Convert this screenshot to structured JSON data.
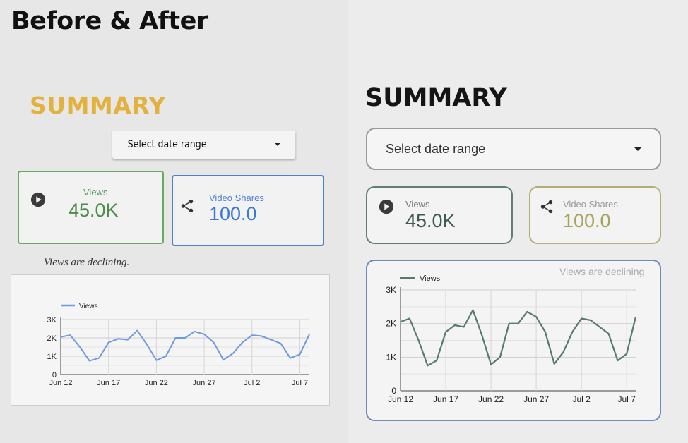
{
  "page": {
    "title": "Before & After"
  },
  "before": {
    "summary_title": "SUMMARY",
    "date_select": {
      "label": "Select date range"
    },
    "views": {
      "label": "Views",
      "value": "45.0K",
      "icon": "play-circle-icon"
    },
    "shares": {
      "label": "Video Shares",
      "value": "100.0",
      "icon": "share-icon"
    },
    "note": "Views are declining.",
    "colors": {
      "summary": "#e3b13d",
      "views": "#62ae5b",
      "shares": "#4a82d6",
      "line": "#6b9be0"
    }
  },
  "after": {
    "summary_title": "SUMMARY",
    "date_select": {
      "label": "Select date range"
    },
    "views": {
      "label": "Views",
      "value": "45.0K",
      "icon": "play-circle-icon"
    },
    "shares": {
      "label": "Video Shares",
      "value": "100.0",
      "icon": "share-icon"
    },
    "note": "Views are declining",
    "colors": {
      "views": "#5f7e76",
      "shares": "#b3ad74",
      "chart_border": "#6d8bbd",
      "line": "#557a70"
    }
  },
  "chart_data": {
    "type": "line",
    "series": [
      {
        "name": "Views",
        "values": [
          2050,
          2150,
          1500,
          750,
          900,
          1750,
          1950,
          1900,
          2400,
          1650,
          780,
          1000,
          2000,
          2000,
          2350,
          2200,
          1750,
          800,
          1150,
          1750,
          2150,
          2100,
          1900,
          1700,
          900,
          1100,
          2200
        ]
      }
    ],
    "x_tick_labels": [
      "Jun 12",
      "Jun 17",
      "Jun 22",
      "Jun 27",
      "Jul 2",
      "Jul 7"
    ],
    "x_tick_indices": [
      0,
      5,
      10,
      15,
      20,
      25
    ],
    "y_ticks": [
      0,
      1000,
      2000,
      3000
    ],
    "y_tick_labels": [
      "0",
      "1K",
      "2K",
      "3K"
    ],
    "ylim": [
      0,
      3000
    ],
    "grid": true,
    "legend": "top-left"
  }
}
